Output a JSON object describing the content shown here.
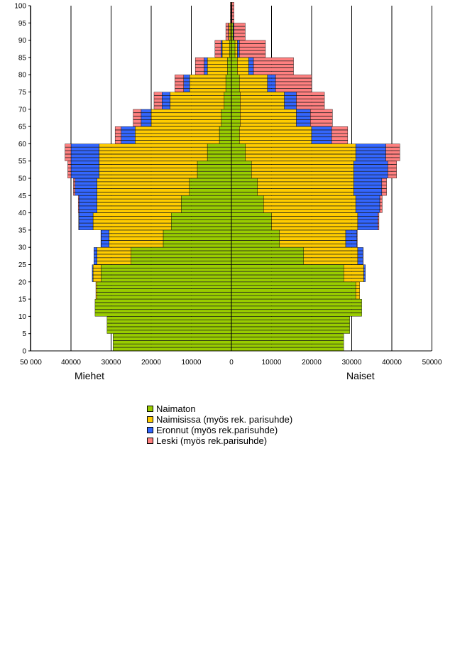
{
  "chart_data": {
    "type": "population-pyramid",
    "left_label": "Miehet",
    "right_label": "Naiset",
    "x_ticks_left": [
      "50 000",
      "40000",
      "30000",
      "20000",
      "10000",
      "0"
    ],
    "x_ticks_right": [
      "10000",
      "20000",
      "30000",
      "40000",
      "50000"
    ],
    "y_ticks": [
      "0",
      "5",
      "10",
      "15",
      "20",
      "25",
      "30",
      "35",
      "40",
      "45",
      "50",
      "55",
      "60",
      "65",
      "70",
      "75",
      "80",
      "85",
      "90",
      "95",
      "100"
    ],
    "xlim": [
      -50000,
      50000
    ],
    "ylim": [
      0,
      100
    ],
    "age_bands": [
      {
        "age_from": 0,
        "age_to": 4,
        "men": {
          "naimaton": 29500,
          "naimisissa": 0,
          "eronnut": 0,
          "leski": 0
        },
        "women": {
          "naimaton": 28000,
          "naimisissa": 0,
          "eronnut": 0,
          "leski": 0
        }
      },
      {
        "age_from": 5,
        "age_to": 9,
        "men": {
          "naimaton": 31000,
          "naimisissa": 0,
          "eronnut": 0,
          "leski": 0
        },
        "women": {
          "naimaton": 29500,
          "naimisissa": 0,
          "eronnut": 0,
          "leski": 0
        }
      },
      {
        "age_from": 10,
        "age_to": 14,
        "men": {
          "naimaton": 34000,
          "naimisissa": 0,
          "eronnut": 0,
          "leski": 0
        },
        "women": {
          "naimaton": 32500,
          "naimisissa": 0,
          "eronnut": 0,
          "leski": 0
        }
      },
      {
        "age_from": 15,
        "age_to": 19,
        "men": {
          "naimaton": 33500,
          "naimisissa": 300,
          "eronnut": 0,
          "leski": 0
        },
        "women": {
          "naimaton": 31000,
          "naimisissa": 1000,
          "eronnut": 0,
          "leski": 0
        }
      },
      {
        "age_from": 20,
        "age_to": 24,
        "men": {
          "naimaton": 32500,
          "naimisissa": 2000,
          "eronnut": 200,
          "leski": 0
        },
        "women": {
          "naimaton": 28000,
          "naimisissa": 5000,
          "eronnut": 400,
          "leski": 0
        }
      },
      {
        "age_from": 25,
        "age_to": 29,
        "men": {
          "naimaton": 25000,
          "naimisissa": 8500,
          "eronnut": 800,
          "leski": 0
        },
        "women": {
          "naimaton": 18000,
          "naimisissa": 13500,
          "eronnut": 1300,
          "leski": 50
        }
      },
      {
        "age_from": 30,
        "age_to": 34,
        "men": {
          "naimaton": 17000,
          "naimisissa": 13500,
          "eronnut": 2000,
          "leski": 50
        },
        "women": {
          "naimaton": 12000,
          "naimisissa": 16500,
          "eronnut": 2800,
          "leski": 100
        }
      },
      {
        "age_from": 35,
        "age_to": 39,
        "men": {
          "naimaton": 15000,
          "naimisissa": 19500,
          "eronnut": 3500,
          "leski": 100
        },
        "women": {
          "naimaton": 10000,
          "naimisissa": 21500,
          "eronnut": 5000,
          "leski": 300
        }
      },
      {
        "age_from": 40,
        "age_to": 44,
        "men": {
          "naimaton": 12500,
          "naimisissa": 21000,
          "eronnut": 4500,
          "leski": 200
        },
        "women": {
          "naimaton": 8000,
          "naimisissa": 23000,
          "eronnut": 6000,
          "leski": 600
        }
      },
      {
        "age_from": 45,
        "age_to": 49,
        "men": {
          "naimaton": 10500,
          "naimisissa": 23000,
          "eronnut": 5500,
          "leski": 400
        },
        "women": {
          "naimaton": 6500,
          "naimisissa": 24000,
          "eronnut": 7000,
          "leski": 1200
        }
      },
      {
        "age_from": 50,
        "age_to": 54,
        "men": {
          "naimaton": 8500,
          "naimisissa": 24500,
          "eronnut": 7000,
          "leski": 800
        },
        "women": {
          "naimaton": 5000,
          "naimisissa": 25500,
          "eronnut": 8500,
          "leski": 2200
        }
      },
      {
        "age_from": 55,
        "age_to": 59,
        "men": {
          "naimaton": 6000,
          "naimisissa": 27000,
          "eronnut": 7000,
          "leski": 1500
        },
        "women": {
          "naimaton": 3500,
          "naimisissa": 27500,
          "eronnut": 7500,
          "leski": 3500
        }
      },
      {
        "age_from": 60,
        "age_to": 64,
        "men": {
          "naimaton": 3000,
          "naimisissa": 21000,
          "eronnut": 3500,
          "leski": 1500
        },
        "women": {
          "naimaton": 2000,
          "naimisissa": 18000,
          "eronnut": 5000,
          "leski": 4000
        }
      },
      {
        "age_from": 65,
        "age_to": 69,
        "men": {
          "naimaton": 2500,
          "naimisissa": 17500,
          "eronnut": 2500,
          "leski": 2000
        },
        "women": {
          "naimaton": 2200,
          "naimisissa": 14000,
          "eronnut": 3500,
          "leski": 5500
        }
      },
      {
        "age_from": 70,
        "age_to": 74,
        "men": {
          "naimaton": 1800,
          "naimisissa": 13500,
          "eronnut": 2000,
          "leski": 2000
        },
        "women": {
          "naimaton": 2200,
          "naimisissa": 11000,
          "eronnut": 3000,
          "leski": 7000
        }
      },
      {
        "age_from": 75,
        "age_to": 79,
        "men": {
          "naimaton": 1400,
          "naimisissa": 9000,
          "eronnut": 1500,
          "leski": 2200
        },
        "women": {
          "naimaton": 2000,
          "naimisissa": 7000,
          "eronnut": 2000,
          "leski": 9000
        }
      },
      {
        "age_from": 80,
        "age_to": 84,
        "men": {
          "naimaton": 1000,
          "naimisissa": 5000,
          "eronnut": 800,
          "leski": 2200
        },
        "women": {
          "naimaton": 1500,
          "naimisissa": 2800,
          "eronnut": 1200,
          "leski": 10000
        }
      },
      {
        "age_from": 85,
        "age_to": 89,
        "men": {
          "naimaton": 500,
          "naimisissa": 1800,
          "eronnut": 300,
          "leski": 1500
        },
        "women": {
          "naimaton": 900,
          "naimisissa": 600,
          "eronnut": 500,
          "leski": 6500
        }
      },
      {
        "age_from": 90,
        "age_to": 94,
        "men": {
          "naimaton": 200,
          "naimisissa": 400,
          "eronnut": 100,
          "leski": 700
        },
        "women": {
          "naimaton": 400,
          "naimisissa": 100,
          "eronnut": 150,
          "leski": 2800
        }
      },
      {
        "age_from": 95,
        "age_to": 100,
        "men": {
          "naimaton": 50,
          "naimisissa": 50,
          "eronnut": 20,
          "leski": 150
        },
        "women": {
          "naimaton": 100,
          "naimisissa": 20,
          "eronnut": 30,
          "leski": 500
        }
      }
    ],
    "series": [
      {
        "key": "naimaton",
        "name": "Naimaton",
        "color": "#99cc00"
      },
      {
        "key": "naimisissa",
        "name": "Naimisissa (myös rek. parisuhde)",
        "color": "#ffcc00"
      },
      {
        "key": "eronnut",
        "name": "Eronnut (myös rek.parisuhde)",
        "color": "#3366ff"
      },
      {
        "key": "leski",
        "name": "Leski (myös rek.parisuhde)",
        "color": "#ff8080"
      }
    ],
    "grid": true,
    "legend_position": "bottom"
  }
}
